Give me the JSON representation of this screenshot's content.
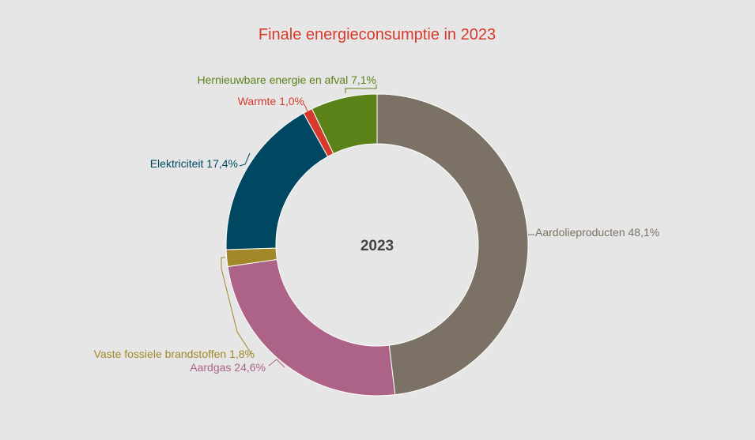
{
  "chart_data": {
    "type": "pie",
    "variant": "donut",
    "title": "Finale energieconsumptie in 2023",
    "center_label": "2023",
    "title_color": "#d63a2c",
    "slices": [
      {
        "name": "Aardolieproducten",
        "value": 48.1,
        "label": "Aardolieproducten 48,1%",
        "color": "#7b7164"
      },
      {
        "name": "Aardgas",
        "value": 24.6,
        "label": "Aardgas 24,6%",
        "color": "#ad6287"
      },
      {
        "name": "Vaste fossiele brandstoffen",
        "value": 1.8,
        "label": "Vaste fossiele brandstoffen 1,8%",
        "color": "#a38829"
      },
      {
        "name": "Elektriciteit",
        "value": 17.4,
        "label": "Elektriciteit 17,4%",
        "color": "#004861"
      },
      {
        "name": "Warmte",
        "value": 1.0,
        "label": "Warmte 1,0%",
        "color": "#d63a2c"
      },
      {
        "name": "Hernieuwbare energie en afval",
        "value": 7.1,
        "label": "Hernieuwbare energie en afval 7,1%",
        "color": "#5a8219"
      }
    ]
  }
}
